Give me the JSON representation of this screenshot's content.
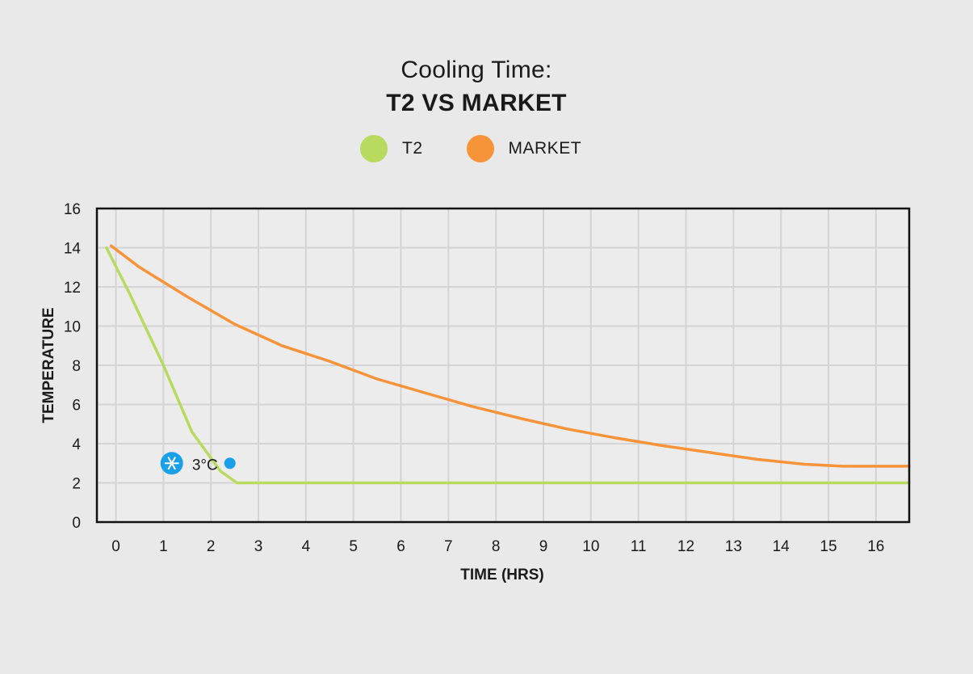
{
  "chart_data": {
    "type": "line",
    "title": "Cooling Time:",
    "subtitle": "T2 VS MARKET",
    "xlabel": "TIME (HRS)",
    "ylabel": "TEMPERATURE",
    "xlim": [
      -0.4,
      16.7
    ],
    "ylim": [
      0,
      16
    ],
    "x_ticks": [
      0,
      1,
      2,
      3,
      4,
      5,
      6,
      7,
      8,
      9,
      10,
      11,
      12,
      13,
      14,
      15,
      16
    ],
    "y_ticks": [
      0,
      2,
      4,
      6,
      8,
      10,
      12,
      14,
      16
    ],
    "grid": true,
    "legend_position": "top-center",
    "series": [
      {
        "name": "T2",
        "color": "#b8da5e",
        "x": [
          -0.2,
          0.3,
          1.0,
          1.6,
          2.2,
          2.55,
          2.8,
          3.5,
          6,
          10,
          14,
          16.7
        ],
        "y": [
          14.0,
          11.6,
          8.0,
          4.6,
          2.6,
          2.0,
          2.0,
          2.0,
          2.0,
          2.0,
          2.0,
          2.0
        ]
      },
      {
        "name": "MARKET",
        "color": "#f7943a",
        "x": [
          -0.1,
          0.5,
          1.5,
          2.5,
          3.5,
          4.5,
          5.5,
          6.5,
          7.5,
          8.5,
          9.5,
          10.5,
          11.5,
          12.5,
          13.5,
          14.5,
          15.3,
          15.8,
          16.2,
          16.7
        ],
        "y": [
          14.1,
          13.0,
          11.5,
          10.1,
          9.0,
          8.2,
          7.3,
          6.6,
          5.9,
          5.3,
          4.75,
          4.3,
          3.9,
          3.55,
          3.2,
          2.95,
          2.85,
          2.85,
          2.85,
          2.85
        ]
      }
    ],
    "annotations": [
      {
        "label": "3°C",
        "x": 2.4,
        "y": 3.0,
        "icon": "snowflake-icon",
        "color": "#1aa0e8"
      }
    ]
  },
  "legend": {
    "t2": "T2",
    "market": "MARKET"
  }
}
